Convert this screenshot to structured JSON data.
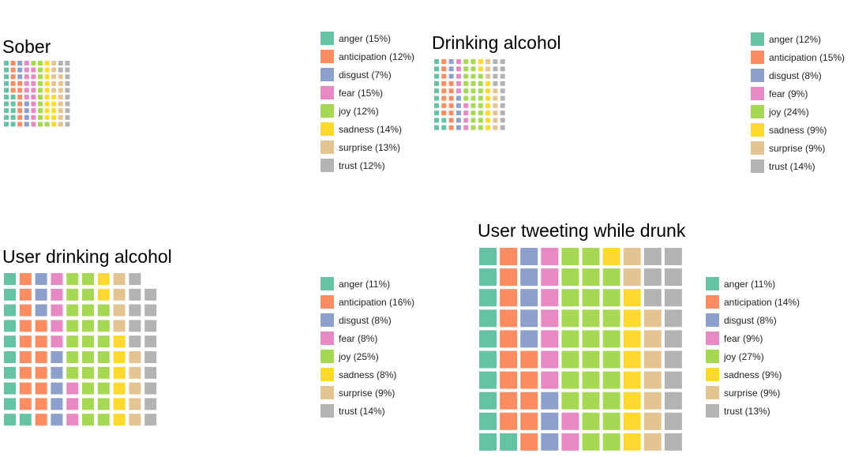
{
  "chart_data": [
    {
      "type": "waffle",
      "title": "Sober",
      "rows": 10,
      "categories": [
        "anger",
        "anticipation",
        "disgust",
        "fear",
        "joy",
        "sadness",
        "surprise",
        "trust"
      ],
      "values": [
        15,
        12,
        7,
        15,
        12,
        14,
        13,
        12
      ],
      "labels": [
        "anger (15%)",
        "anticipation (12%)",
        "disgust (7%)",
        "fear (15%)",
        "joy (12%)",
        "sadness (14%)",
        "surprise (13%)",
        "trust (12%)"
      ],
      "legend_position": "right"
    },
    {
      "type": "waffle",
      "title": "Drinking alcohol",
      "rows": 10,
      "categories": [
        "anger",
        "anticipation",
        "disgust",
        "fear",
        "joy",
        "sadness",
        "surprise",
        "trust"
      ],
      "values": [
        12,
        15,
        8,
        9,
        24,
        9,
        9,
        14
      ],
      "labels": [
        "anger (12%)",
        "anticipation (15%)",
        "disgust (8%)",
        "fear (9%)",
        "joy (24%)",
        "sadness (9%)",
        "surprise (9%)",
        "trust (14%)"
      ],
      "legend_position": "right"
    },
    {
      "type": "waffle",
      "title": "User drinking alcohol",
      "rows": 10,
      "categories": [
        "anger",
        "anticipation",
        "disgust",
        "fear",
        "joy",
        "sadness",
        "surprise",
        "trust"
      ],
      "values": [
        11,
        16,
        8,
        8,
        25,
        8,
        9,
        14
      ],
      "labels": [
        "anger (11%)",
        "anticipation (16%)",
        "disgust (8%)",
        "fear (8%)",
        "joy (25%)",
        "sadness (8%)",
        "surprise (9%)",
        "trust (14%)"
      ],
      "legend_position": "right"
    },
    {
      "type": "waffle",
      "title": "User tweeting while drunk",
      "rows": 10,
      "categories": [
        "anger",
        "anticipation",
        "disgust",
        "fear",
        "joy",
        "sadness",
        "surprise",
        "trust"
      ],
      "values": [
        11,
        14,
        8,
        9,
        27,
        9,
        9,
        13
      ],
      "labels": [
        "anger (11%)",
        "anticipation (14%)",
        "disgust (8%)",
        "fear (9%)",
        "joy (27%)",
        "sadness (9%)",
        "surprise (9%)",
        "trust (13%)"
      ],
      "legend_position": "right"
    }
  ],
  "colors": {
    "anger": "#66c2a5",
    "anticipation": "#fc8d62",
    "disgust": "#8da0cb",
    "fear": "#e78ac3",
    "joy": "#a6d854",
    "sadness": "#ffd92f",
    "surprise": "#e5c494",
    "trust": "#b3b3b3"
  }
}
